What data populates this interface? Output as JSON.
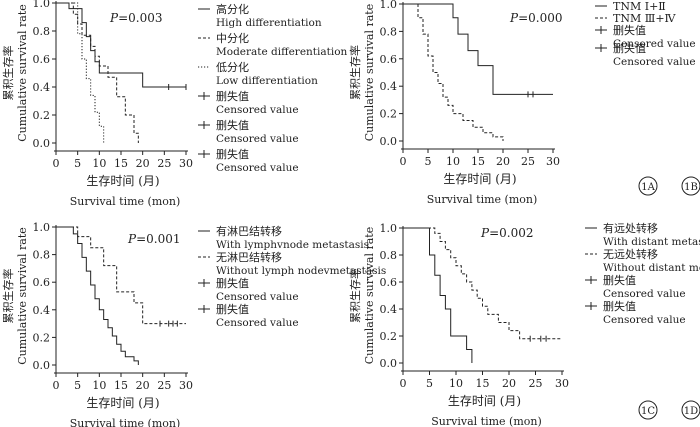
{
  "chart_data": [
    {
      "panel_label": "1A",
      "type": "line",
      "ylabel_cn": "累积生存率",
      "ylabel_en": "Cumulative survival rate",
      "xlabel_cn": "生存时间 (月)",
      "xlabel_en": "Survival time  (mon)",
      "pvalue": "P=0.003",
      "xlim": [
        0,
        30
      ],
      "ylim": [
        0,
        1.0
      ],
      "xticks": [
        "0",
        "5",
        "10",
        "15",
        "20",
        "25",
        "30"
      ],
      "yticks": [
        "0.0",
        "0.2",
        "0.4",
        "0.6",
        "0.8",
        "1.0"
      ],
      "legend": [
        {
          "cn": "高分化",
          "en": "High differentiation"
        },
        {
          "cn": "中分化",
          "en": "Moderate differentiation"
        },
        {
          "cn": "低分化",
          "en": "Low differentiation"
        },
        {
          "cn": "删失值",
          "en": "Censored value"
        },
        {
          "cn": "删失值",
          "en": "Censored value"
        },
        {
          "cn": "删失值",
          "en": "Censored value"
        }
      ],
      "series": [
        {
          "style": "solid",
          "x": [
            0,
            3,
            6,
            7,
            8,
            9,
            10,
            12,
            20,
            30
          ],
          "y": [
            1.0,
            0.96,
            0.86,
            0.76,
            0.66,
            0.58,
            0.5,
            0.5,
            0.4,
            0.4
          ],
          "censored": [
            [
              26,
              0.4
            ],
            [
              30,
              0.4
            ]
          ]
        },
        {
          "style": "dash",
          "x": [
            0,
            4,
            5,
            6,
            8,
            9,
            10,
            12,
            14,
            16,
            18,
            19
          ],
          "y": [
            1.0,
            0.92,
            0.85,
            0.77,
            0.69,
            0.62,
            0.55,
            0.47,
            0.33,
            0.2,
            0.07,
            0.0
          ],
          "censored": []
        },
        {
          "style": "dot",
          "x": [
            0,
            5,
            6,
            7,
            8,
            9,
            10,
            11
          ],
          "y": [
            1.0,
            0.78,
            0.6,
            0.46,
            0.34,
            0.22,
            0.12,
            0.0
          ],
          "censored": []
        }
      ]
    },
    {
      "panel_label": "1B",
      "type": "line",
      "ylabel_cn": "累积生存率",
      "ylabel_en": "Cumulative survival rate",
      "xlabel_cn": "生存时间 (月)",
      "xlabel_en": "Survival time  (mon)",
      "pvalue": "P=0.000",
      "xlim": [
        0,
        30
      ],
      "ylim": [
        0,
        1.0
      ],
      "xticks": [
        "0",
        "5",
        "10",
        "15",
        "20",
        "25",
        "30"
      ],
      "yticks": [
        "0.0",
        "0.2",
        "0.4",
        "0.6",
        "0.8",
        "1.0"
      ],
      "legend": [
        {
          "cn": "TNM Ⅰ+Ⅱ",
          "en": ""
        },
        {
          "cn": "TNM Ⅲ+Ⅳ",
          "en": ""
        },
        {
          "cn": "删失值",
          "en": "Censored value"
        },
        {
          "cn": "删失值",
          "en": "Censored value"
        }
      ],
      "series": [
        {
          "style": "solid",
          "x": [
            0,
            10,
            11,
            13,
            15,
            18,
            30
          ],
          "y": [
            1.0,
            0.9,
            0.78,
            0.66,
            0.55,
            0.34,
            0.34
          ],
          "censored": [
            [
              25,
              0.34
            ],
            [
              26,
              0.34
            ]
          ]
        },
        {
          "style": "dash",
          "x": [
            0,
            3,
            4,
            5,
            6,
            7,
            8,
            9,
            10,
            12,
            14,
            16,
            18,
            20
          ],
          "y": [
            1.0,
            0.9,
            0.78,
            0.62,
            0.5,
            0.42,
            0.32,
            0.26,
            0.2,
            0.15,
            0.1,
            0.06,
            0.03,
            0.0
          ],
          "censored": []
        }
      ]
    },
    {
      "panel_label": "1C",
      "type": "line",
      "ylabel_cn": "累积生存率",
      "ylabel_en": "Cumulative survival rate",
      "xlabel_cn": "生存时间 (月)",
      "xlabel_en": "Survival time  (mon)",
      "pvalue": "P=0.001",
      "xlim": [
        0,
        30
      ],
      "ylim": [
        0,
        1.0
      ],
      "xticks": [
        "0",
        "5",
        "10",
        "15",
        "20",
        "25",
        "30"
      ],
      "yticks": [
        "0.0",
        "0.2",
        "0.4",
        "0.6",
        "0.8",
        "1.0"
      ],
      "legend": [
        {
          "cn": "有淋巴结转移",
          "en": "With lymphvnode metastasis"
        },
        {
          "cn": "无淋巴结转移",
          "en": "Without lymph nodevmetastasis"
        },
        {
          "cn": "删失值",
          "en": "Censored value"
        },
        {
          "cn": "删失值",
          "en": "Censored value"
        }
      ],
      "series": [
        {
          "style": "solid",
          "x": [
            0,
            4,
            5,
            6,
            7,
            8,
            9,
            10,
            11,
            12,
            13,
            14,
            15,
            16,
            18,
            19
          ],
          "y": [
            1.0,
            0.95,
            0.88,
            0.78,
            0.68,
            0.58,
            0.48,
            0.4,
            0.33,
            0.27,
            0.21,
            0.15,
            0.1,
            0.06,
            0.03,
            0.0
          ],
          "censored": []
        },
        {
          "style": "dash",
          "x": [
            0,
            5,
            8,
            11,
            14,
            18,
            20,
            30
          ],
          "y": [
            1.0,
            0.93,
            0.85,
            0.72,
            0.53,
            0.45,
            0.3,
            0.3
          ],
          "censored": [
            [
              24,
              0.3
            ],
            [
              26,
              0.3
            ],
            [
              27,
              0.3
            ],
            [
              28,
              0.3
            ]
          ]
        }
      ]
    },
    {
      "panel_label": "1D",
      "type": "line",
      "ylabel_cn": "累积生存率",
      "ylabel_en": "Cumulative survival rate",
      "xlabel_cn": "生存时间 (月)",
      "xlabel_en": "Survival time  (mon)",
      "pvalue": "P=0.002",
      "xlim": [
        0,
        30
      ],
      "ylim": [
        0,
        1.0
      ],
      "xticks": [
        "0",
        "5",
        "10",
        "15",
        "20",
        "25",
        "30"
      ],
      "yticks": [
        "0.0",
        "0.2",
        "0.4",
        "0.6",
        "0.8",
        "1.0"
      ],
      "legend": [
        {
          "cn": "有远处转移",
          "en": "With distant metastasis"
        },
        {
          "cn": "无远处转移",
          "en": "Without distant metastasis"
        },
        {
          "cn": "删失值",
          "en": "Censored value"
        },
        {
          "cn": "删失值",
          "en": "Censored value"
        }
      ],
      "series": [
        {
          "style": "solid",
          "x": [
            0,
            5,
            6,
            7,
            8,
            9,
            12,
            13
          ],
          "y": [
            1.0,
            0.8,
            0.65,
            0.5,
            0.4,
            0.2,
            0.1,
            0.0
          ],
          "censored": []
        },
        {
          "style": "dash",
          "x": [
            0,
            6,
            7,
            8,
            9,
            10,
            11,
            12,
            13,
            14,
            15,
            16,
            18,
            20,
            22,
            30
          ],
          "y": [
            1.0,
            0.96,
            0.9,
            0.84,
            0.78,
            0.72,
            0.66,
            0.6,
            0.54,
            0.48,
            0.42,
            0.36,
            0.3,
            0.24,
            0.18,
            0.18
          ],
          "censored": [
            [
              24,
              0.18
            ],
            [
              26,
              0.18
            ],
            [
              27,
              0.18
            ]
          ]
        }
      ]
    }
  ]
}
